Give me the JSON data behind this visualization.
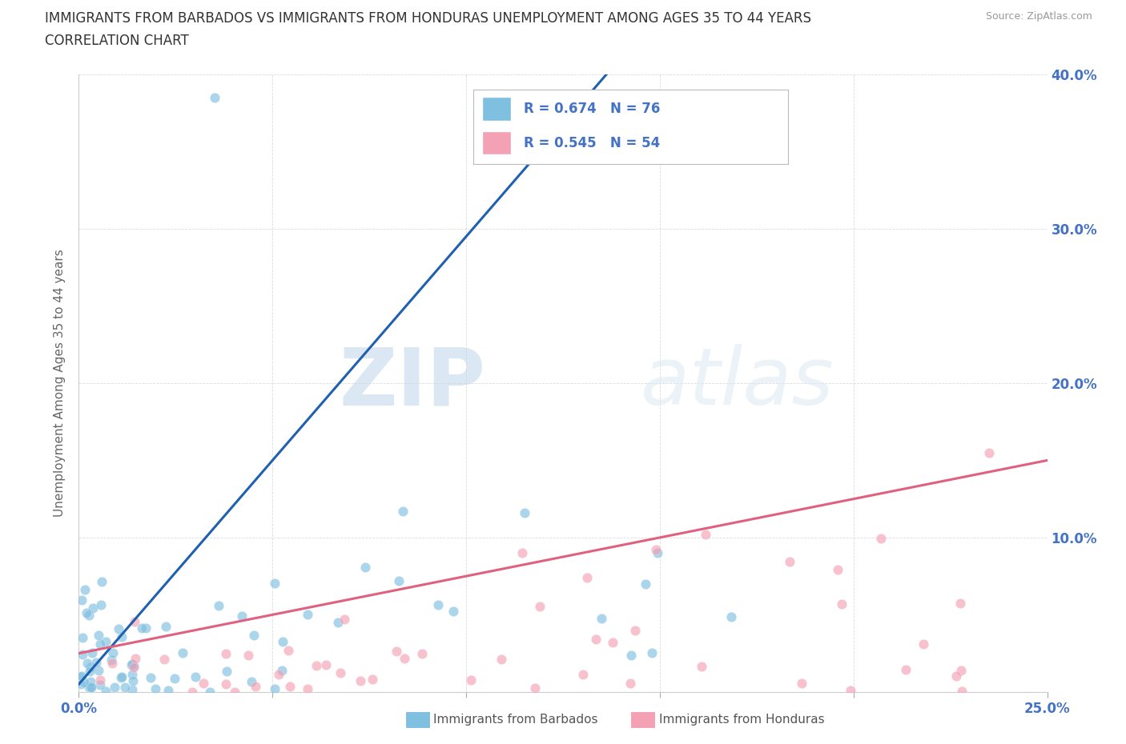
{
  "title_line1": "IMMIGRANTS FROM BARBADOS VS IMMIGRANTS FROM HONDURAS UNEMPLOYMENT AMONG AGES 35 TO 44 YEARS",
  "title_line2": "CORRELATION CHART",
  "source": "Source: ZipAtlas.com",
  "ylabel": "Unemployment Among Ages 35 to 44 years",
  "xlim": [
    0,
    0.25
  ],
  "ylim": [
    0,
    0.4
  ],
  "xticks": [
    0.0,
    0.05,
    0.1,
    0.15,
    0.2,
    0.25
  ],
  "yticks": [
    0.0,
    0.1,
    0.2,
    0.3,
    0.4
  ],
  "barbados_color": "#7fbfdf",
  "honduras_color": "#f4a0b5",
  "barbados_line_color": "#2060b0",
  "honduras_line_color": "#e06080",
  "barbados_R": 0.674,
  "barbados_N": 76,
  "honduras_R": 0.545,
  "honduras_N": 54,
  "legend_label_1": "Immigrants from Barbados",
  "legend_label_2": "Immigrants from Honduras",
  "watermark_zip": "ZIP",
  "watermark_atlas": "atlas",
  "background_color": "#ffffff",
  "grid_color": "#cccccc",
  "tick_label_color": "#4472c4",
  "title_color": "#333333",
  "source_color": "#999999",
  "ylabel_color": "#666666"
}
